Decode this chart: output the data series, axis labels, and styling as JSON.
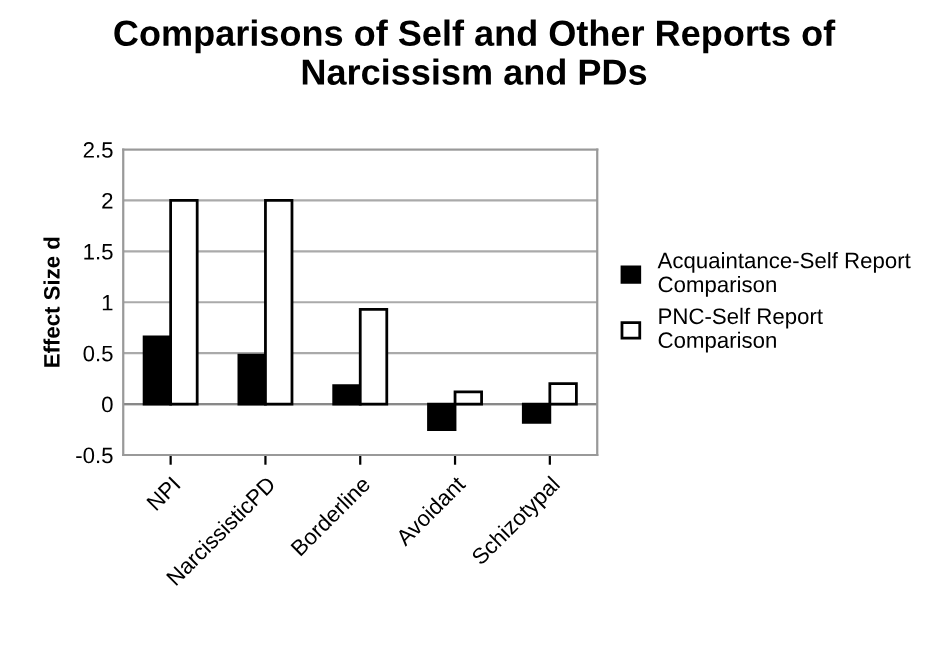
{
  "chart_data": {
    "type": "bar",
    "title": "Comparisons of Self and Other Reports of\nNarcissism and PDs",
    "ylabel": "Effect Size d",
    "categories": [
      "NPI",
      "NarcissisticPD",
      "Borderline",
      "Avoidant",
      "Schizotypal"
    ],
    "series": [
      {
        "name": "Acquaintance-Self Report\nComparison",
        "color": "#000000",
        "values": [
          0.66,
          0.48,
          0.18,
          -0.25,
          -0.18
        ]
      },
      {
        "name": "PNC-Self Report\nComparison",
        "color": "#ffffff",
        "values": [
          2.0,
          2.0,
          0.93,
          0.12,
          0.2
        ]
      }
    ],
    "ylim": [
      -0.5,
      2.5
    ],
    "yticks": [
      -0.5,
      0,
      0.5,
      1,
      1.5,
      2,
      2.5
    ],
    "grid": "y",
    "legend": "right"
  }
}
